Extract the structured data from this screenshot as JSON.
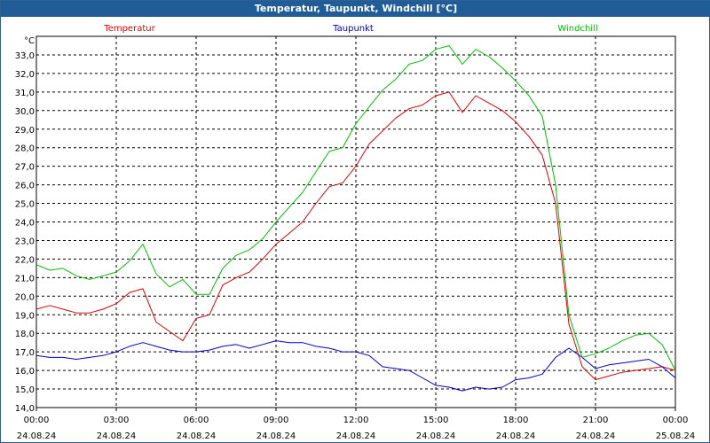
{
  "window": {
    "title": "Temperatur, Taupunkt, Windchill [°C]"
  },
  "chart_data": {
    "type": "line",
    "title": "Temperatur, Taupunkt, Windchill [°C]",
    "ylabel": "°C",
    "xlabel": "",
    "ylim": [
      14.0,
      34.0
    ],
    "xlim_hours": [
      0,
      24
    ],
    "grid": true,
    "legend_placement": "top",
    "y_ticks": [
      "14,0",
      "15,0",
      "16,0",
      "17,0",
      "18,0",
      "19,0",
      "20,0",
      "21,0",
      "22,0",
      "23,0",
      "24,0",
      "25,0",
      "26,0",
      "27,0",
      "28,0",
      "29,0",
      "30,0",
      "31,0",
      "32,0",
      "33,0"
    ],
    "x_ticks": [
      {
        "time": "00:00",
        "date": "24.08.24"
      },
      {
        "time": "03:00",
        "date": "24.08.24"
      },
      {
        "time": "06:00",
        "date": "24.08.24"
      },
      {
        "time": "09:00",
        "date": "24.08.24"
      },
      {
        "time": "12:00",
        "date": "24.08.24"
      },
      {
        "time": "15:00",
        "date": "24.08.24"
      },
      {
        "time": "18:00",
        "date": "24.08.24"
      },
      {
        "time": "21:00",
        "date": "24.08.24"
      },
      {
        "time": "00:00",
        "date": "25.08.24"
      }
    ],
    "series": [
      {
        "name": "Temperatur",
        "color": "#e00000",
        "x": [
          0,
          0.5,
          1,
          1.5,
          2,
          2.5,
          3,
          3.5,
          4,
          4.5,
          5,
          5.5,
          6,
          6.5,
          7,
          7.5,
          8,
          8.5,
          9,
          9.5,
          10,
          10.5,
          11,
          11.5,
          12,
          12.5,
          13,
          13.5,
          14,
          14.5,
          15,
          15.5,
          16,
          16.5,
          17,
          17.5,
          18,
          18.5,
          19,
          19.5,
          20,
          20.5,
          21,
          21.5,
          22,
          22.5,
          23,
          23.5,
          24
        ],
        "values": [
          19.3,
          19.5,
          19.3,
          19.1,
          19.1,
          19.3,
          19.6,
          20.2,
          20.4,
          18.6,
          18.1,
          17.6,
          18.8,
          19.0,
          20.6,
          21.0,
          21.3,
          22.0,
          22.8,
          23.4,
          24.0,
          25.0,
          25.9,
          26.1,
          27.0,
          28.2,
          28.9,
          29.6,
          30.1,
          30.3,
          30.8,
          31.0,
          29.9,
          30.8,
          30.4,
          30.0,
          29.4,
          28.6,
          27.6,
          25.0,
          18.5,
          16.2,
          15.5,
          15.7,
          15.9,
          16.0,
          16.1,
          16.2,
          16.0
        ]
      },
      {
        "name": "Taupunkt",
        "color": "#0000d0",
        "x": [
          0,
          0.5,
          1,
          1.5,
          2,
          2.5,
          3,
          3.5,
          4,
          4.5,
          5,
          5.5,
          6,
          6.5,
          7,
          7.5,
          8,
          8.5,
          9,
          9.5,
          10,
          10.5,
          11,
          11.5,
          12,
          12.5,
          13,
          13.5,
          14,
          14.5,
          15,
          15.5,
          16,
          16.5,
          17,
          17.5,
          18,
          18.5,
          19,
          19.5,
          20,
          20.5,
          21,
          21.5,
          22,
          22.5,
          23,
          23.5,
          24
        ],
        "values": [
          16.8,
          16.7,
          16.7,
          16.6,
          16.7,
          16.8,
          17.0,
          17.3,
          17.5,
          17.3,
          17.1,
          17.0,
          17.0,
          17.1,
          17.3,
          17.4,
          17.2,
          17.4,
          17.6,
          17.5,
          17.5,
          17.3,
          17.2,
          17.0,
          17.0,
          16.8,
          16.2,
          16.1,
          16.0,
          15.6,
          15.2,
          15.1,
          14.9,
          15.1,
          15.0,
          15.1,
          15.5,
          15.6,
          15.8,
          16.7,
          17.2,
          16.7,
          16.1,
          16.3,
          16.4,
          16.5,
          16.6,
          16.2,
          15.6
        ]
      },
      {
        "name": "Windchill",
        "color": "#00c000",
        "x": [
          0,
          0.5,
          1,
          1.5,
          2,
          2.5,
          3,
          3.5,
          4,
          4.5,
          5,
          5.5,
          6,
          6.5,
          7,
          7.5,
          8,
          8.5,
          9,
          9.5,
          10,
          10.5,
          11,
          11.5,
          12,
          12.5,
          13,
          13.5,
          14,
          14.5,
          15,
          15.5,
          16,
          16.5,
          17,
          17.5,
          18,
          18.5,
          19,
          19.5,
          20,
          20.5,
          21,
          21.5,
          22,
          22.5,
          23,
          23.5,
          24
        ],
        "values": [
          21.7,
          21.4,
          21.5,
          21.1,
          20.9,
          21.1,
          21.3,
          21.9,
          22.8,
          21.2,
          20.5,
          20.9,
          20.1,
          20.1,
          21.5,
          22.2,
          22.5,
          23.1,
          24.0,
          24.8,
          25.6,
          26.7,
          27.8,
          28.0,
          29.3,
          30.2,
          31.1,
          31.7,
          32.5,
          32.7,
          33.3,
          33.5,
          32.5,
          33.3,
          32.9,
          32.3,
          31.6,
          30.8,
          29.7,
          26.0,
          19.0,
          16.7,
          16.9,
          17.2,
          17.6,
          17.9,
          18.0,
          17.4,
          16.0
        ]
      }
    ]
  }
}
